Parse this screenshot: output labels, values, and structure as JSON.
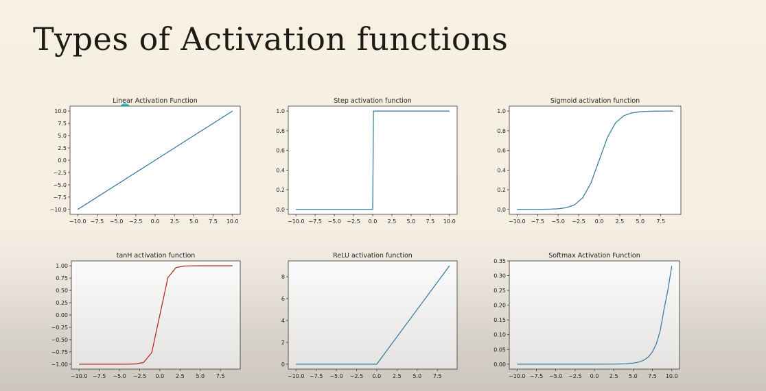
{
  "slide": {
    "title": "Types of Activation functions",
    "pointer_color": "#28c1cf"
  },
  "chart_data": [
    {
      "type": "line",
      "title": "Linear Activation Function",
      "color": "#3b7ea1",
      "x": [
        -10,
        10
      ],
      "y": [
        -10,
        10
      ],
      "xlim": [
        -11,
        11
      ],
      "ylim": [
        -11,
        11
      ],
      "xticks": [
        -10,
        -7.5,
        -5,
        -2.5,
        0,
        2.5,
        5,
        7.5,
        10
      ],
      "xtick_labels": [
        "−10.0",
        "−7.5",
        "−5.0",
        "−2.5",
        "0.0",
        "2.5",
        "5.0",
        "7.5",
        "10.0"
      ],
      "yticks": [
        10,
        7.5,
        5,
        2.5,
        0,
        -2.5,
        -5,
        -7.5,
        -10
      ],
      "ytick_labels": [
        "10.0",
        "7.5",
        "5.0",
        "2.5",
        "0.0",
        "−2.5",
        "−5.0",
        "−7.5",
        "−10.0"
      ],
      "grid": false
    },
    {
      "type": "line",
      "title": "Step activation function",
      "color": "#3b7ea1",
      "x": [
        -10,
        0,
        0.1,
        10
      ],
      "y": [
        0,
        0,
        1,
        1
      ],
      "xlim": [
        -11,
        11
      ],
      "ylim": [
        -0.05,
        1.05
      ],
      "xticks": [
        -10,
        -7.5,
        -5,
        -2.5,
        0,
        2.5,
        5,
        7.5,
        10
      ],
      "xtick_labels": [
        "−10.0",
        "−7.5",
        "−5.0",
        "−2.5",
        "0.0",
        "2.5",
        "5.0",
        "7.5",
        "10.0"
      ],
      "yticks": [
        1,
        0.8,
        0.6,
        0.4,
        0.2,
        0
      ],
      "ytick_labels": [
        "1.0",
        "0.8",
        "0.6",
        "0.4",
        "0.2",
        "0.0"
      ],
      "grid": false
    },
    {
      "type": "line",
      "title": "Sigmoid activation function",
      "color": "#3b7ea1",
      "x": [
        -10,
        -9,
        -8,
        -7,
        -6,
        -5,
        -4,
        -3,
        -2,
        -1,
        0,
        1,
        2,
        3,
        4,
        5,
        6,
        7,
        8,
        9
      ],
      "y": [
        0.0,
        0.0001,
        0.0003,
        0.0009,
        0.0025,
        0.0067,
        0.018,
        0.047,
        0.119,
        0.269,
        0.5,
        0.731,
        0.881,
        0.953,
        0.982,
        0.993,
        0.9975,
        0.9991,
        0.9997,
        0.9999
      ],
      "xlim": [
        -10.95,
        9.95
      ],
      "ylim": [
        -0.05,
        1.05
      ],
      "xticks": [
        -10,
        -7.5,
        -5,
        -2.5,
        0,
        2.5,
        5,
        7.5
      ],
      "xtick_labels": [
        "−10.0",
        "−7.5",
        "−5.0",
        "−2.5",
        "0.0",
        "2.5",
        "5.0",
        "7.5"
      ],
      "yticks": [
        1,
        0.8,
        0.6,
        0.4,
        0.2,
        0
      ],
      "ytick_labels": [
        "1.0",
        "0.8",
        "0.6",
        "0.4",
        "0.2",
        "0.0"
      ],
      "grid": false
    },
    {
      "type": "line",
      "title": "tanH activation function",
      "color": "#b22e22",
      "x": [
        -10,
        -9,
        -8,
        -7,
        -6,
        -5,
        -4,
        -3,
        -2,
        -1,
        0,
        1,
        2,
        3,
        4,
        5,
        6,
        7,
        8,
        9
      ],
      "y": [
        -1,
        -1,
        -1,
        -1,
        -1,
        -0.9999,
        -0.9993,
        -0.995,
        -0.964,
        -0.762,
        0,
        0.762,
        0.964,
        0.995,
        0.9993,
        0.9999,
        1,
        1,
        1,
        1
      ],
      "xlim": [
        -10.95,
        9.95
      ],
      "ylim": [
        -1.1,
        1.1
      ],
      "xticks": [
        -10,
        -7.5,
        -5,
        -2.5,
        0,
        2.5,
        5,
        7.5
      ],
      "xtick_labels": [
        "−10.0",
        "−7.5",
        "−5.0",
        "−2.5",
        "0.0",
        "2.5",
        "5.0",
        "7.5"
      ],
      "yticks": [
        1,
        0.75,
        0.5,
        0.25,
        0,
        -0.25,
        -0.5,
        -0.75,
        -1
      ],
      "ytick_labels": [
        "1.00",
        "0.75",
        "0.50",
        "0.25",
        "0.00",
        "−0.25",
        "−0.50",
        "−0.75",
        "−1.00"
      ],
      "grid": false
    },
    {
      "type": "line",
      "title": "ReLU activation function",
      "color": "#3b7ea1",
      "x": [
        -10,
        0,
        9
      ],
      "y": [
        0,
        0,
        9
      ],
      "xlim": [
        -10.95,
        9.95
      ],
      "ylim": [
        -0.45,
        9.45
      ],
      "xticks": [
        -10,
        -7.5,
        -5,
        -2.5,
        0,
        2.5,
        5,
        7.5
      ],
      "xtick_labels": [
        "−10.0",
        "−7.5",
        "−5.0",
        "−2.5",
        "0.0",
        "2.5",
        "5.0",
        "7.5"
      ],
      "yticks": [
        8,
        6,
        4,
        2,
        0
      ],
      "ytick_labels": [
        "8",
        "6",
        "4",
        "2",
        "0"
      ],
      "grid": false
    },
    {
      "type": "line",
      "title": "Softmax Activation Function",
      "color": "#3b7ea1",
      "x": [
        -10,
        -9,
        -8,
        -7,
        -6,
        -5,
        -4,
        -3,
        -2,
        -1,
        0,
        1,
        2,
        3,
        4,
        5,
        5.5,
        6,
        6.5,
        7,
        7.5,
        8,
        8.5,
        9,
        9.5,
        10
      ],
      "y": [
        0,
        0,
        0,
        0,
        0,
        0,
        0,
        0,
        0,
        0,
        0,
        0.0001,
        0.0002,
        0.0005,
        0.0013,
        0.0034,
        0.0056,
        0.0093,
        0.0153,
        0.0252,
        0.0415,
        0.0685,
        0.1129,
        0.1861,
        0.2515,
        0.333
      ],
      "xlim": [
        -11,
        11
      ],
      "ylim": [
        -0.0167,
        0.35
      ],
      "xticks": [
        -10,
        -7.5,
        -5,
        -2.5,
        0,
        2.5,
        5,
        7.5,
        10
      ],
      "xtick_labels": [
        "−10.0",
        "−7.5",
        "−5.0",
        "−2.5",
        "0.0",
        "2.5",
        "5.0",
        "7.5",
        "10.0"
      ],
      "yticks": [
        0.35,
        0.3,
        0.25,
        0.2,
        0.15,
        0.1,
        0.05,
        0
      ],
      "ytick_labels": [
        "0.35",
        "0.30",
        "0.25",
        "0.20",
        "0.15",
        "0.10",
        "0.05",
        "0.00"
      ],
      "grid": false
    }
  ]
}
